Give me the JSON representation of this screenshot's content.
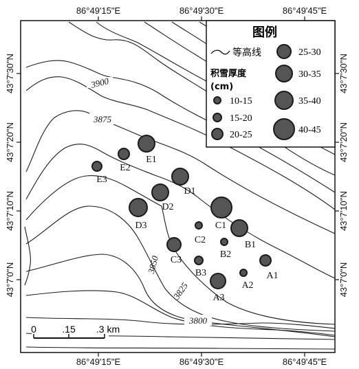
{
  "axes": {
    "top": [
      "86°49'15\"E",
      "86°49'30\"E",
      "86°49'45\"E"
    ],
    "bottom": [
      "86°49'15\"E",
      "86°49'30\"E",
      "86°49'45\"E"
    ],
    "left": [
      "43°7'30\"N",
      "43°7'20\"N",
      "43°7'10\"N",
      "43°7'0\"N"
    ],
    "right": [
      "43°7'30\"N",
      "43°7'20\"N",
      "43°7'10\"N",
      "43°7'0\"N"
    ]
  },
  "contour_labels": [
    "3900",
    "3875",
    "3850",
    "3825",
    "3800"
  ],
  "legend": {
    "title": "图例",
    "contour_label": "等高线",
    "depth_title": "积雪厚度",
    "unit": "(cm)",
    "classes": [
      "10-15",
      "15-20",
      "20-25",
      "25-30",
      "30-35",
      "35-40",
      "40-45"
    ]
  },
  "scale_bar": {
    "labels": [
      "0",
      ".15",
      ".3 km"
    ]
  },
  "sites": [
    {
      "id": "E1",
      "class": "35-40"
    },
    {
      "id": "E2",
      "class": "15-20"
    },
    {
      "id": "E3",
      "class": "15-20"
    },
    {
      "id": "D1",
      "class": "25-30"
    },
    {
      "id": "D2",
      "class": "30-35"
    },
    {
      "id": "D3",
      "class": "30-35"
    },
    {
      "id": "C1",
      "class": "40-45"
    },
    {
      "id": "C2",
      "class": "10-15"
    },
    {
      "id": "C3",
      "class": "25-30"
    },
    {
      "id": "B1",
      "class": "35-40"
    },
    {
      "id": "B2",
      "class": "10-15"
    },
    {
      "id": "B3",
      "class": "15-20"
    },
    {
      "id": "A1",
      "class": "20-25"
    },
    {
      "id": "A2",
      "class": "10-15"
    },
    {
      "id": "A3",
      "class": "30-35"
    }
  ],
  "colors": {
    "marker_fill": "#555555",
    "line": "#1a1a1a"
  }
}
